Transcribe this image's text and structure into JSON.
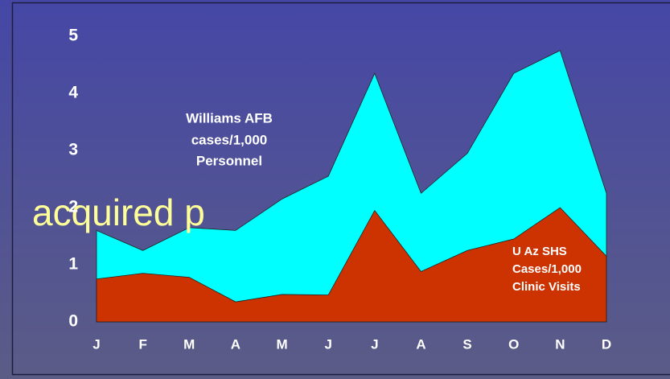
{
  "chart_data": {
    "type": "area",
    "overlay_text": "acquired p",
    "categories": [
      "J",
      "F",
      "M",
      "A",
      "M",
      "J",
      "J",
      "A",
      "S",
      "O",
      "N",
      "D"
    ],
    "series": [
      {
        "name": "Williams AFB",
        "color": "#00ffff",
        "values": [
          1.6,
          1.25,
          1.65,
          1.6,
          2.15,
          2.55,
          4.35,
          2.25,
          2.95,
          4.35,
          4.75,
          2.25
        ]
      },
      {
        "name": "U Az SHS",
        "color": "#cc3300",
        "values": [
          0.75,
          0.85,
          0.78,
          0.35,
          0.48,
          0.47,
          1.95,
          0.88,
          1.25,
          1.45,
          2.0,
          1.15
        ]
      }
    ],
    "annotations": [
      {
        "lines": [
          "Williams AFB",
          "cases/1,000",
          "Personnel"
        ]
      },
      {
        "lines": [
          "U Az SHS",
          "Cases/1,000",
          "Clinic Visits"
        ]
      }
    ],
    "ylim": [
      0,
      5
    ],
    "yticks": [
      0,
      1,
      2,
      3,
      4,
      5
    ],
    "grid": false
  }
}
